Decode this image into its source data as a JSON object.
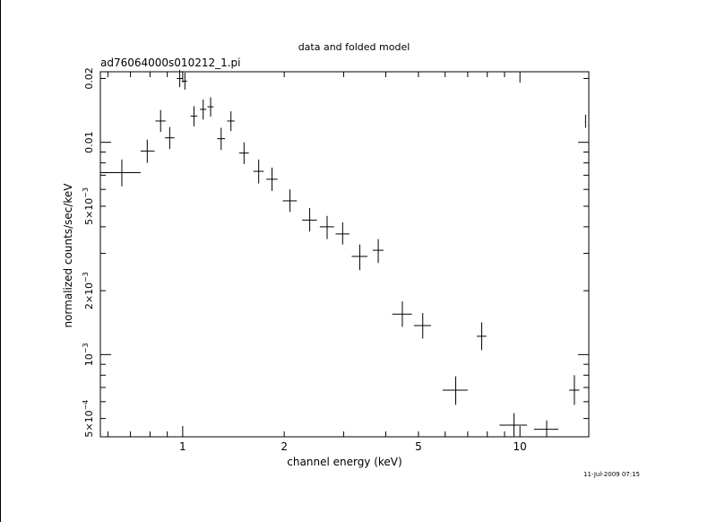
{
  "chart_data": {
    "type": "scatter",
    "title": "data and folded model",
    "subtitle": "ad76064000s010212_1.pi",
    "xlabel": "channel energy (keV)",
    "ylabel": "normalized counts/sec/keV",
    "x_scale": "log",
    "y_scale": "log",
    "xlim": [
      0.57,
      16.0
    ],
    "ylim": [
      0.00041,
      0.0215
    ],
    "grid": false,
    "legend": "none",
    "x_ticks": [
      {
        "value": 1,
        "label": "1"
      },
      {
        "value": 2,
        "label": "2"
      },
      {
        "value": 5,
        "label": "5"
      },
      {
        "value": 10,
        "label": "10"
      }
    ],
    "y_ticks": [
      {
        "value": 0.0005,
        "label": "5×10",
        "exp": "−4"
      },
      {
        "value": 0.001,
        "label": "10",
        "exp": "−3"
      },
      {
        "value": 0.002,
        "label": "2×10",
        "exp": "−3"
      },
      {
        "value": 0.005,
        "label": "5×10",
        "exp": "−3"
      },
      {
        "value": 0.01,
        "label": "0.01",
        "exp": ""
      },
      {
        "value": 0.02,
        "label": "0.02",
        "exp": ""
      }
    ],
    "points": [
      {
        "x": 0.66,
        "xlo": 0.57,
        "xhi": 0.75,
        "y": 0.0072,
        "ylo": 0.0062,
        "yhi": 0.0083
      },
      {
        "x": 0.785,
        "xlo": 0.75,
        "xhi": 0.825,
        "y": 0.0091,
        "ylo": 0.008,
        "yhi": 0.0103
      },
      {
        "x": 0.86,
        "xlo": 0.83,
        "xhi": 0.89,
        "y": 0.0126,
        "ylo": 0.0112,
        "yhi": 0.0142
      },
      {
        "x": 0.915,
        "xlo": 0.885,
        "xhi": 0.945,
        "y": 0.0105,
        "ylo": 0.0093,
        "yhi": 0.0118
      },
      {
        "x": 0.98,
        "xlo": 0.96,
        "xhi": 1.0,
        "y": 0.02,
        "ylo": 0.0182,
        "yhi": 0.0219
      },
      {
        "x": 1.015,
        "xlo": 1.0,
        "xhi": 1.03,
        "y": 0.0194,
        "ylo": 0.0177,
        "yhi": 0.0213
      },
      {
        "x": 1.08,
        "xlo": 1.055,
        "xhi": 1.105,
        "y": 0.0133,
        "ylo": 0.0119,
        "yhi": 0.0148
      },
      {
        "x": 1.15,
        "xlo": 1.125,
        "xhi": 1.175,
        "y": 0.0143,
        "ylo": 0.0128,
        "yhi": 0.0159
      },
      {
        "x": 1.21,
        "xlo": 1.185,
        "xhi": 1.235,
        "y": 0.0147,
        "ylo": 0.0132,
        "yhi": 0.0163
      },
      {
        "x": 1.3,
        "xlo": 1.265,
        "xhi": 1.335,
        "y": 0.0104,
        "ylo": 0.0092,
        "yhi": 0.0117
      },
      {
        "x": 1.39,
        "xlo": 1.355,
        "xhi": 1.425,
        "y": 0.0126,
        "ylo": 0.0113,
        "yhi": 0.014
      },
      {
        "x": 1.52,
        "xlo": 1.47,
        "xhi": 1.57,
        "y": 0.0089,
        "ylo": 0.0079,
        "yhi": 0.01
      },
      {
        "x": 1.68,
        "xlo": 1.62,
        "xhi": 1.74,
        "y": 0.0073,
        "ylo": 0.0064,
        "yhi": 0.0083
      },
      {
        "x": 1.84,
        "xlo": 1.77,
        "xhi": 1.91,
        "y": 0.0067,
        "ylo": 0.0059,
        "yhi": 0.0076
      },
      {
        "x": 2.08,
        "xlo": 1.98,
        "xhi": 2.18,
        "y": 0.0053,
        "ylo": 0.0047,
        "yhi": 0.006
      },
      {
        "x": 2.38,
        "xlo": 2.26,
        "xhi": 2.5,
        "y": 0.0043,
        "ylo": 0.0038,
        "yhi": 0.0049
      },
      {
        "x": 2.68,
        "xlo": 2.55,
        "xhi": 2.81,
        "y": 0.004,
        "ylo": 0.0035,
        "yhi": 0.0045
      },
      {
        "x": 2.98,
        "xlo": 2.84,
        "xhi": 3.12,
        "y": 0.0037,
        "ylo": 0.0033,
        "yhi": 0.0042
      },
      {
        "x": 3.35,
        "xlo": 3.17,
        "xhi": 3.53,
        "y": 0.0029,
        "ylo": 0.0025,
        "yhi": 0.0033
      },
      {
        "x": 3.8,
        "xlo": 3.66,
        "xhi": 3.94,
        "y": 0.0031,
        "ylo": 0.0027,
        "yhi": 0.0035
      },
      {
        "x": 4.48,
        "xlo": 4.18,
        "xhi": 4.78,
        "y": 0.00155,
        "ylo": 0.00135,
        "yhi": 0.00178
      },
      {
        "x": 5.15,
        "xlo": 4.85,
        "xhi": 5.45,
        "y": 0.00137,
        "ylo": 0.00119,
        "yhi": 0.00157
      },
      {
        "x": 6.45,
        "xlo": 5.9,
        "xhi": 7.0,
        "y": 0.00068,
        "ylo": 0.00058,
        "yhi": 0.00079
      },
      {
        "x": 7.7,
        "xlo": 7.45,
        "xhi": 7.95,
        "y": 0.00122,
        "ylo": 0.00105,
        "yhi": 0.00142
      },
      {
        "x": 9.6,
        "xlo": 8.7,
        "xhi": 10.5,
        "y": 0.000465,
        "ylo": 0.00041,
        "yhi": 0.00053
      },
      {
        "x": 12.0,
        "xlo": 11.0,
        "xhi": 13.0,
        "y": 0.000445,
        "ylo": 0.00041,
        "yhi": 0.00049
      },
      {
        "x": 14.5,
        "xlo": 14.0,
        "xhi": 15.0,
        "y": 0.00068,
        "ylo": 0.00058,
        "yhi": 0.0008
      },
      {
        "x": 15.65,
        "xlo": 15.6,
        "xhi": 15.7,
        "y": 0.0125,
        "ylo": 0.0117,
        "yhi": 0.0135
      }
    ]
  },
  "timestamp": "11-Jul-2009 07:15"
}
